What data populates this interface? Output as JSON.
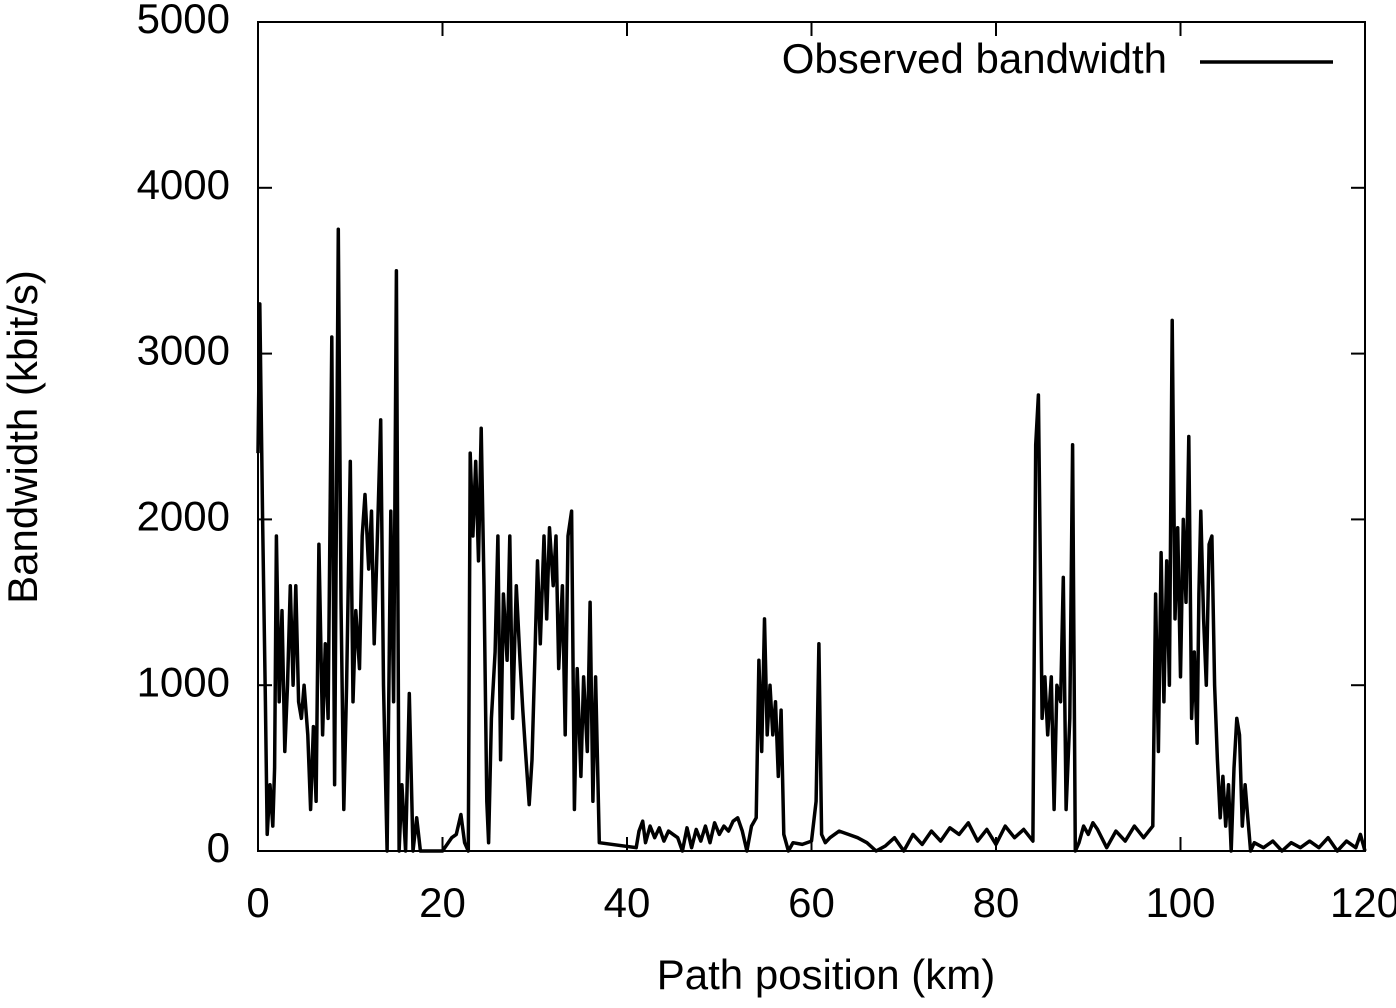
{
  "chart_data": {
    "type": "line",
    "xlabel": "Path position (km)",
    "ylabel": "Bandwidth (kbit/s)",
    "xlim": [
      0,
      120
    ],
    "ylim": [
      0,
      5000
    ],
    "xticks": [
      0,
      20,
      40,
      60,
      80,
      100,
      120
    ],
    "yticks": [
      0,
      1000,
      2000,
      3000,
      4000,
      5000
    ],
    "legend_position": "upper right",
    "series": [
      {
        "name": "Observed bandwidth",
        "color": "#000000",
        "x": [
          0,
          0.2,
          0.5,
          0.8,
          1,
          1.3,
          1.6,
          1.8,
          2,
          2.3,
          2.6,
          2.9,
          3.2,
          3.5,
          3.8,
          4.1,
          4.4,
          4.7,
          5,
          5.4,
          5.7,
          6,
          6.3,
          6.6,
          7,
          7.3,
          7.6,
          8,
          8.3,
          8.7,
          9,
          9.3,
          9.6,
          10,
          10.3,
          10.6,
          11,
          11.3,
          11.6,
          12,
          12.3,
          12.6,
          13,
          13.3,
          13.6,
          14,
          14.4,
          14.7,
          15,
          15.3,
          15.6,
          16,
          16.4,
          16.8,
          17.2,
          17.6,
          18.5,
          20,
          21,
          21.5,
          22,
          22.4,
          22.8,
          23,
          23.3,
          23.6,
          23.9,
          24.2,
          24.5,
          24.8,
          25,
          25.3,
          25.7,
          26,
          26.3,
          26.6,
          27,
          27.3,
          27.6,
          28,
          28.4,
          28.7,
          29,
          29.4,
          29.7,
          30,
          30.3,
          30.6,
          31,
          31.3,
          31.6,
          32,
          32.3,
          32.6,
          33,
          33.3,
          33.6,
          34,
          34.3,
          34.6,
          35,
          35.3,
          35.7,
          36,
          36.3,
          36.6,
          37,
          41,
          41.3,
          41.7,
          42,
          42.5,
          43,
          43.5,
          44,
          44.5,
          45,
          45.5,
          46,
          46.5,
          47,
          47.5,
          48,
          48.5,
          49,
          49.5,
          50,
          50.5,
          51,
          51.5,
          52,
          52.5,
          53,
          53.5,
          54,
          54.3,
          54.6,
          54.9,
          55.2,
          55.5,
          55.8,
          56.1,
          56.4,
          56.7,
          57,
          57.5,
          58,
          59,
          60,
          60.5,
          60.8,
          61.1,
          61.5,
          62,
          63,
          64,
          65,
          66,
          67,
          68,
          69,
          70,
          71,
          72,
          73,
          74,
          75,
          76,
          77,
          78,
          79,
          80,
          81,
          82,
          83,
          84,
          84.3,
          84.6,
          85,
          85.3,
          85.6,
          86,
          86.3,
          86.6,
          87,
          87.3,
          87.6,
          88,
          88.3,
          88.6,
          89,
          89.5,
          90,
          90.5,
          91,
          92,
          93,
          94,
          95,
          96,
          97,
          97.3,
          97.6,
          97.9,
          98.2,
          98.5,
          98.8,
          99.1,
          99.4,
          99.7,
          100,
          100.3,
          100.6,
          100.9,
          101.2,
          101.5,
          101.8,
          102,
          102.2,
          102.5,
          102.8,
          103.1,
          103.4,
          103.7,
          104,
          104.3,
          104.6,
          104.9,
          105.2,
          105.5,
          105.8,
          106.1,
          106.4,
          106.7,
          107,
          107.3,
          107.6,
          108,
          109,
          110,
          111,
          112,
          113,
          114,
          115,
          116,
          117,
          118,
          119,
          119.5,
          120
        ],
        "values": [
          2400,
          3300,
          2000,
          900,
          100,
          400,
          150,
          500,
          1900,
          900,
          1450,
          600,
          1000,
          1600,
          1000,
          1600,
          900,
          800,
          1000,
          700,
          250,
          750,
          300,
          1850,
          700,
          1250,
          800,
          3100,
          400,
          3750,
          1500,
          250,
          1000,
          2350,
          900,
          1450,
          1100,
          1900,
          2150,
          1700,
          2050,
          1250,
          2000,
          2600,
          1000,
          0,
          2050,
          900,
          3500,
          0,
          400,
          0,
          950,
          0,
          200,
          0,
          0,
          0,
          80,
          100,
          220,
          50,
          0,
          2400,
          1900,
          2350,
          1750,
          2550,
          1600,
          300,
          50,
          800,
          1200,
          1900,
          550,
          1550,
          1150,
          1900,
          800,
          1600,
          1150,
          850,
          600,
          280,
          550,
          1150,
          1750,
          1250,
          1900,
          1400,
          1950,
          1600,
          1900,
          1100,
          1600,
          700,
          1900,
          2050,
          250,
          1100,
          450,
          1050,
          600,
          1500,
          300,
          1050,
          50,
          20,
          120,
          180,
          50,
          150,
          80,
          140,
          60,
          120,
          100,
          80,
          0,
          140,
          20,
          130,
          60,
          150,
          50,
          170,
          100,
          150,
          120,
          180,
          200,
          120,
          0,
          150,
          200,
          1150,
          600,
          1400,
          700,
          1000,
          700,
          900,
          450,
          850,
          100,
          0,
          50,
          40,
          60,
          300,
          1250,
          100,
          50,
          80,
          120,
          100,
          80,
          50,
          0,
          30,
          80,
          0,
          100,
          40,
          120,
          60,
          140,
          100,
          170,
          60,
          130,
          40,
          150,
          80,
          130,
          60,
          2450,
          2750,
          800,
          1050,
          700,
          1050,
          250,
          1000,
          900,
          1650,
          250,
          800,
          2450,
          0,
          50,
          150,
          100,
          170,
          130,
          20,
          120,
          60,
          150,
          80,
          150,
          1550,
          600,
          1800,
          900,
          1750,
          1000,
          3200,
          1400,
          1950,
          1050,
          2000,
          1500,
          2500,
          800,
          1200,
          650,
          1550,
          2050,
          1400,
          1000,
          1850,
          1900,
          1000,
          550,
          200,
          450,
          150,
          400,
          0,
          500,
          800,
          700,
          150,
          400,
          200,
          0,
          50,
          20,
          60,
          0,
          50,
          20,
          60,
          20,
          80,
          0,
          60,
          20,
          100,
          0
        ]
      }
    ]
  }
}
